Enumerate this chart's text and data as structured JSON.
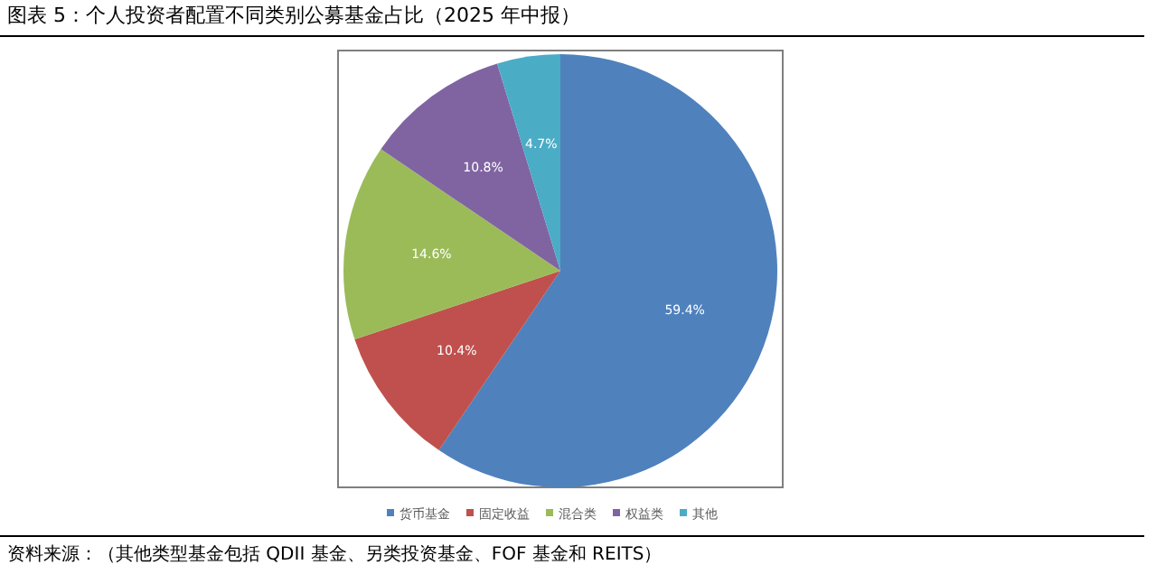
{
  "chart_data": {
    "type": "pie",
    "title": "图表 5：个人投资者配置不同类别公募基金占比（2025 年中报）",
    "categories": [
      "货币基金",
      "固定收益",
      "混合类",
      "权益类",
      "其他"
    ],
    "values": [
      59.4,
      10.4,
      14.6,
      10.8,
      4.7
    ],
    "value_labels": [
      "59.4%",
      "10.4%",
      "14.6%",
      "10.8%",
      "4.7%"
    ],
    "colors": [
      "#4f81bd",
      "#c0504d",
      "#9bbb59",
      "#8064a2",
      "#4bacc6"
    ],
    "legend": "bottom",
    "annotations": [
      "资料来源：（其他类型基金包括 QDII 基金、另类投资基金、FOF 基金和 REITS）"
    ]
  }
}
